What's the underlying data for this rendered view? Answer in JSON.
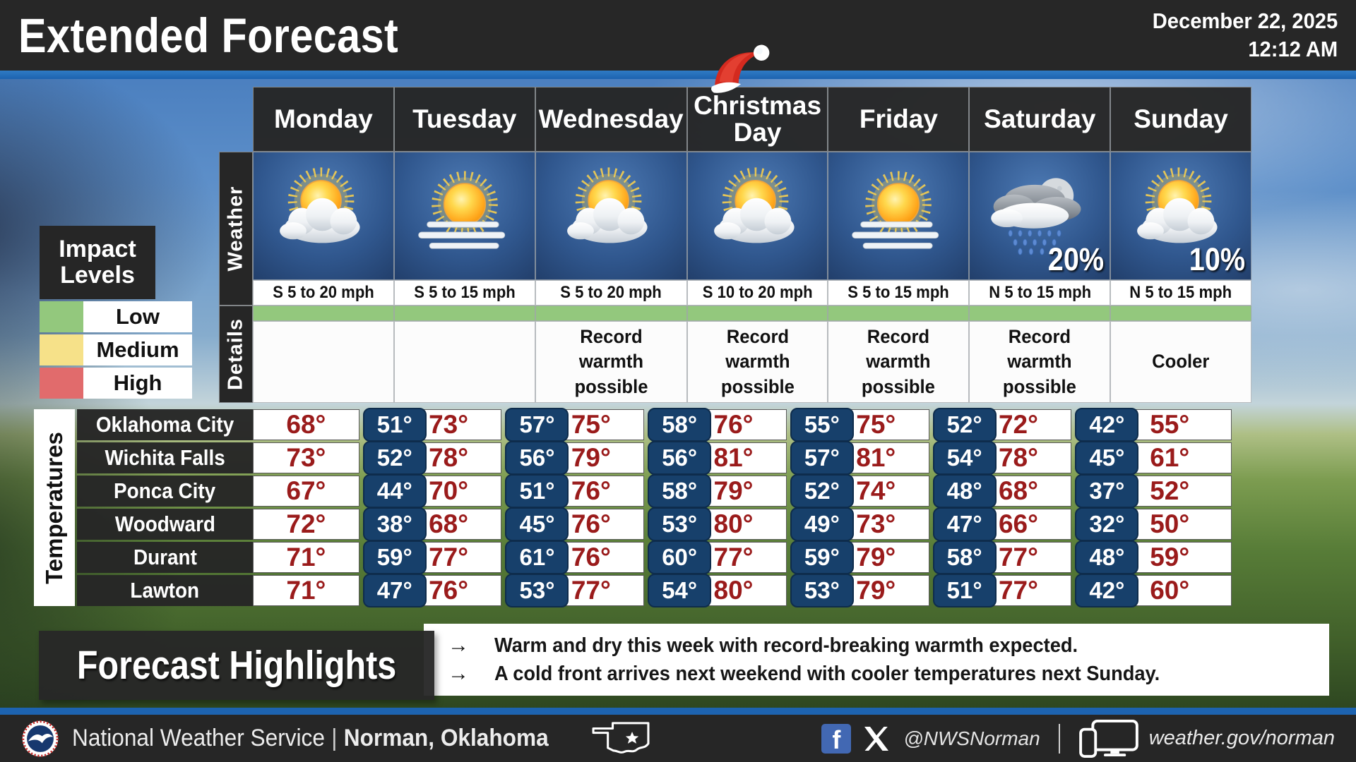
{
  "header": {
    "title": "Extended Forecast",
    "date": "December 22, 2025",
    "time": "12:12 AM"
  },
  "colors": {
    "accent_blue": "#1d63b0",
    "impact_low": "#93c87d",
    "impact_medium": "#f6e189",
    "impact_high": "#e16b6c",
    "temp_high_text": "#9a1b1b",
    "temp_low_bg": "#17406b"
  },
  "impact_legend": {
    "title": "Impact Levels",
    "levels": [
      {
        "label": "Low",
        "color": "#93c87d"
      },
      {
        "label": "Medium",
        "color": "#f6e189"
      },
      {
        "label": "High",
        "color": "#e16b6c"
      }
    ]
  },
  "forecast": {
    "weather_label": "Weather",
    "details_label": "Details",
    "days": [
      {
        "name": "Monday",
        "icon": "partly-cloudy",
        "pop": "",
        "wind": "S 5 to 20 mph",
        "impact": "Low",
        "details": ""
      },
      {
        "name": "Tuesday",
        "icon": "hazy-sun",
        "pop": "",
        "wind": "S 5 to 15 mph",
        "impact": "Low",
        "details": ""
      },
      {
        "name": "Wednesday",
        "icon": "partly-cloudy",
        "pop": "",
        "wind": "S 5 to 20 mph",
        "impact": "Low",
        "details": "Record warmth possible"
      },
      {
        "name": "Christmas Day",
        "icon": "partly-cloudy",
        "pop": "",
        "wind": "S 10 to 20 mph",
        "impact": "Low",
        "details": "Record warmth possible",
        "santa_hat": true
      },
      {
        "name": "Friday",
        "icon": "hazy-sun",
        "pop": "",
        "wind": "S 5 to 15 mph",
        "impact": "Low",
        "details": "Record warmth possible"
      },
      {
        "name": "Saturday",
        "icon": "night-rain",
        "pop": "20%",
        "wind": "N 5 to 15 mph",
        "impact": "Low",
        "details": "Record warmth possible"
      },
      {
        "name": "Sunday",
        "icon": "partly-cloudy",
        "pop": "10%",
        "wind": "N 5 to 15 mph",
        "impact": "Low",
        "details": "Cooler"
      }
    ]
  },
  "temperatures": {
    "label": "Temperatures",
    "rows": [
      {
        "city": "Oklahoma City",
        "temps": [
          {
            "high": "68°",
            "low": "51°"
          },
          {
            "high": "73°",
            "low": "57°"
          },
          {
            "high": "75°",
            "low": "58°"
          },
          {
            "high": "76°",
            "low": "55°"
          },
          {
            "high": "75°",
            "low": "52°"
          },
          {
            "high": "72°",
            "low": "42°"
          },
          {
            "high": "55°",
            "low": ""
          }
        ]
      },
      {
        "city": "Wichita Falls",
        "temps": [
          {
            "high": "73°",
            "low": "52°"
          },
          {
            "high": "78°",
            "low": "56°"
          },
          {
            "high": "79°",
            "low": "56°"
          },
          {
            "high": "81°",
            "low": "57°"
          },
          {
            "high": "81°",
            "low": "54°"
          },
          {
            "high": "78°",
            "low": "45°"
          },
          {
            "high": "61°",
            "low": ""
          }
        ]
      },
      {
        "city": "Ponca City",
        "temps": [
          {
            "high": "67°",
            "low": "44°"
          },
          {
            "high": "70°",
            "low": "51°"
          },
          {
            "high": "76°",
            "low": "58°"
          },
          {
            "high": "79°",
            "low": "52°"
          },
          {
            "high": "74°",
            "low": "48°"
          },
          {
            "high": "68°",
            "low": "37°"
          },
          {
            "high": "52°",
            "low": ""
          }
        ]
      },
      {
        "city": "Woodward",
        "temps": [
          {
            "high": "72°",
            "low": "38°"
          },
          {
            "high": "68°",
            "low": "45°"
          },
          {
            "high": "76°",
            "low": "53°"
          },
          {
            "high": "80°",
            "low": "49°"
          },
          {
            "high": "73°",
            "low": "47°"
          },
          {
            "high": "66°",
            "low": "32°"
          },
          {
            "high": "50°",
            "low": ""
          }
        ]
      },
      {
        "city": "Durant",
        "temps": [
          {
            "high": "71°",
            "low": "59°"
          },
          {
            "high": "77°",
            "low": "61°"
          },
          {
            "high": "76°",
            "low": "60°"
          },
          {
            "high": "77°",
            "low": "59°"
          },
          {
            "high": "79°",
            "low": "58°"
          },
          {
            "high": "77°",
            "low": "48°"
          },
          {
            "high": "59°",
            "low": ""
          }
        ]
      },
      {
        "city": "Lawton",
        "temps": [
          {
            "high": "71°",
            "low": "47°"
          },
          {
            "high": "76°",
            "low": "53°"
          },
          {
            "high": "77°",
            "low": "54°"
          },
          {
            "high": "80°",
            "low": "53°"
          },
          {
            "high": "79°",
            "low": "51°"
          },
          {
            "high": "77°",
            "low": "42°"
          },
          {
            "high": "60°",
            "low": ""
          }
        ]
      }
    ]
  },
  "highlights": {
    "title": "Forecast Highlights",
    "bullet_glyph": "→",
    "bullets": [
      "Warm and dry this week with record-breaking warmth expected.",
      "A cold front arrives next weekend with cooler temperatures next Sunday."
    ]
  },
  "footer": {
    "agency": "National Weather Service",
    "separator": "|",
    "office": "Norman, Oklahoma",
    "facebook_glyph": "f",
    "social_handle": "@NWSNorman",
    "website": "weather.gov/norman"
  }
}
